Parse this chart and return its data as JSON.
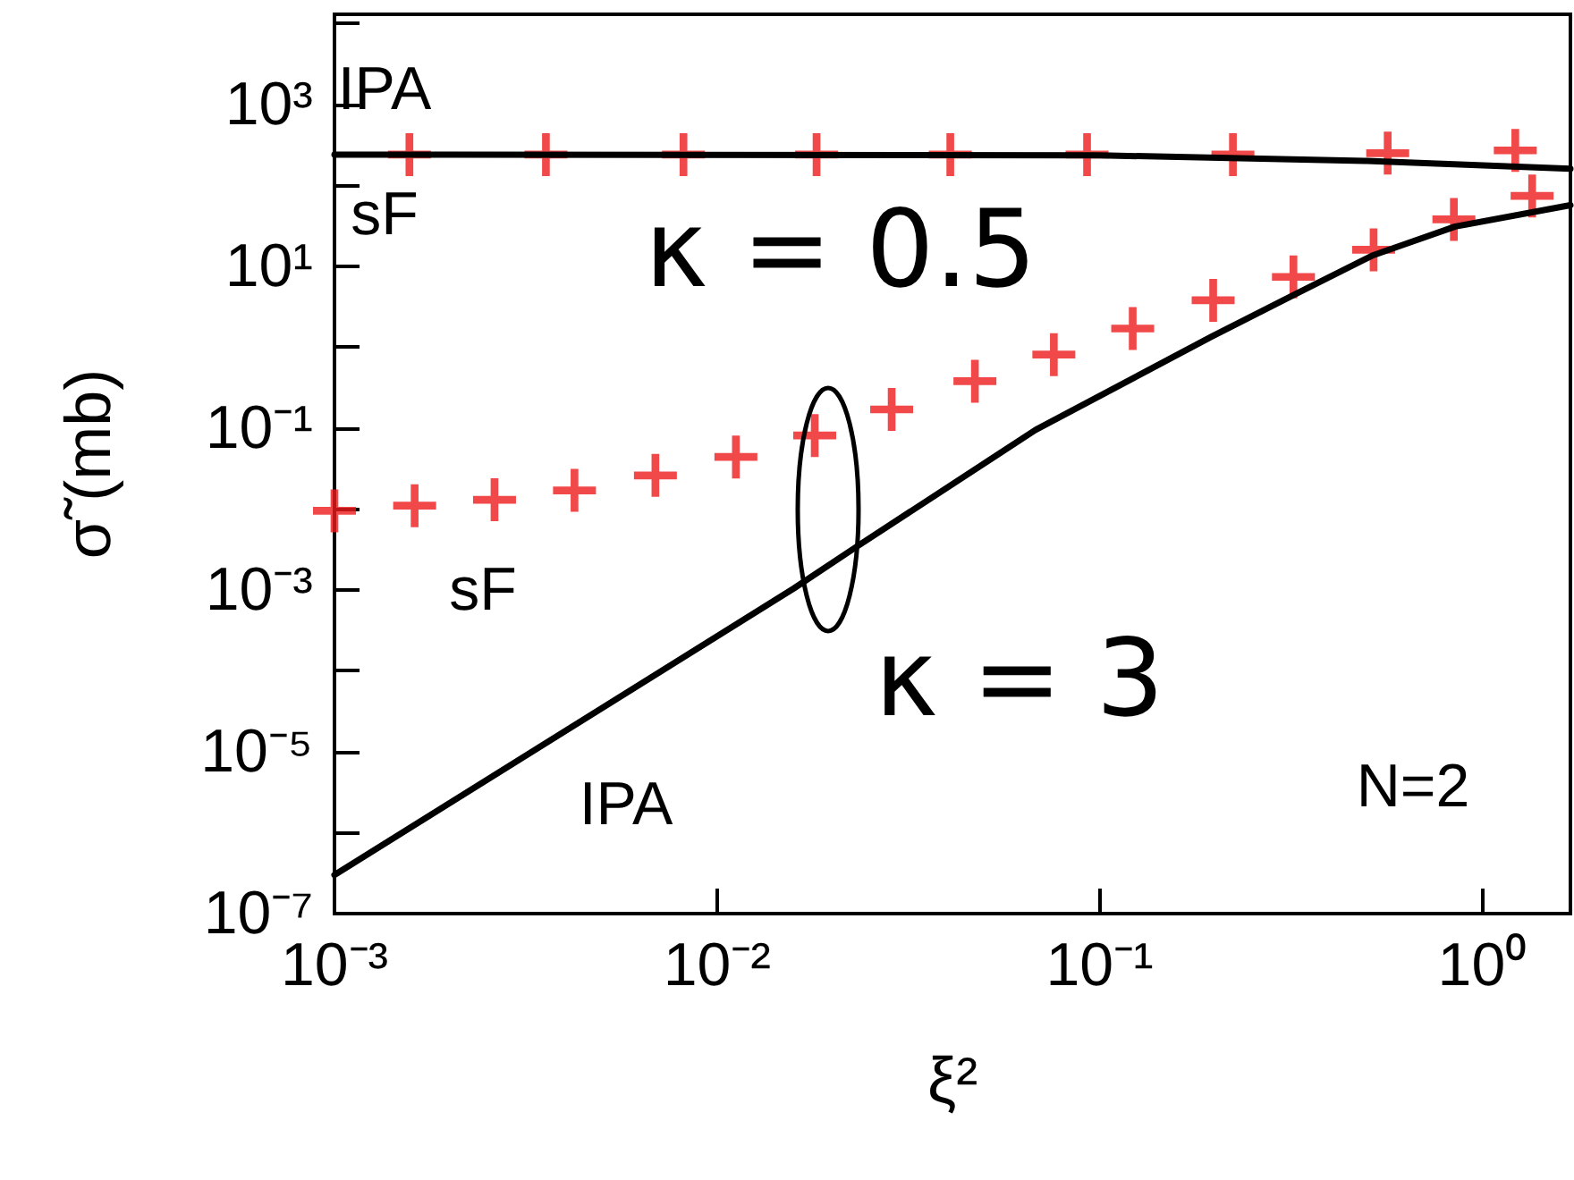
{
  "chart_data": {
    "type": "line",
    "xlabel": "ξ²",
    "ylabel": "σ̃ (mb)",
    "log": "xy",
    "grid": false,
    "xlim": [
      0.001,
      1.7
    ],
    "ylim": [
      1e-07,
      13000
    ],
    "xticks": [
      {
        "value": 0.001,
        "label": "10⁻³"
      },
      {
        "value": 0.01,
        "label": "10⁻²"
      },
      {
        "value": 0.1,
        "label": "10⁻¹"
      },
      {
        "value": 1,
        "label": "10⁰"
      }
    ],
    "yticks": [
      {
        "value": 1e-07,
        "label": "10⁻⁷"
      },
      {
        "value": 1e-06,
        "label": null
      },
      {
        "value": 1e-05,
        "label": "10⁻⁵"
      },
      {
        "value": 0.0001,
        "label": null
      },
      {
        "value": 0.001,
        "label": "10⁻³"
      },
      {
        "value": 0.01,
        "label": null
      },
      {
        "value": 0.1,
        "label": "10⁻¹"
      },
      {
        "value": 1,
        "label": null
      },
      {
        "value": 10,
        "label": "10¹"
      },
      {
        "value": 100,
        "label": null
      },
      {
        "value": 1000,
        "label": "10³"
      },
      {
        "value": 10000,
        "label": null
      }
    ],
    "series": [
      {
        "color": "#000000",
        "marker": "none",
        "line_style": "solid",
        "x": [
          0.001,
          0.1,
          0.5,
          1.7
        ],
        "values": [
          240,
          235,
          200,
          160
        ]
      },
      {
        "color": "#000000",
        "marker": "none",
        "line_style": "solid",
        "x": [
          0.001,
          0.0159,
          0.0231,
          0.068,
          0.196,
          0.321,
          0.515,
          0.85,
          1.7
        ],
        "values": [
          3e-07,
          0.00105,
          0.0034,
          0.095,
          1.35,
          4.4,
          13.5,
          31,
          57
        ]
      },
      {
        "type": "scatter",
        "color": "#ee1c1c",
        "marker": "cross",
        "x": [
          0.00157,
          0.00357,
          0.00817,
          0.0182,
          0.0407,
          0.0927,
          0.223,
          0.566,
          1.22
        ],
        "values": [
          240,
          240,
          240,
          240,
          240,
          240,
          240,
          250,
          270
        ]
      },
      {
        "type": "scatter",
        "color": "#ee1c1c",
        "marker": "cross",
        "x": [
          0.001,
          0.00162,
          0.00262,
          0.00424,
          0.0069,
          0.0112,
          0.018,
          0.0286,
          0.0472,
          0.0759,
          0.122,
          0.198,
          0.321,
          0.52,
          0.843,
          1.35
        ],
        "values": [
          0.0095,
          0.011,
          0.013,
          0.017,
          0.026,
          0.044,
          0.081,
          0.17,
          0.38,
          0.81,
          1.7,
          3.8,
          7.4,
          16,
          38,
          74
        ]
      }
    ],
    "annotations": [
      "IPA",
      "sF",
      "κ = 0.5",
      "sF",
      "κ = 3",
      "IPA",
      "N=2"
    ]
  }
}
